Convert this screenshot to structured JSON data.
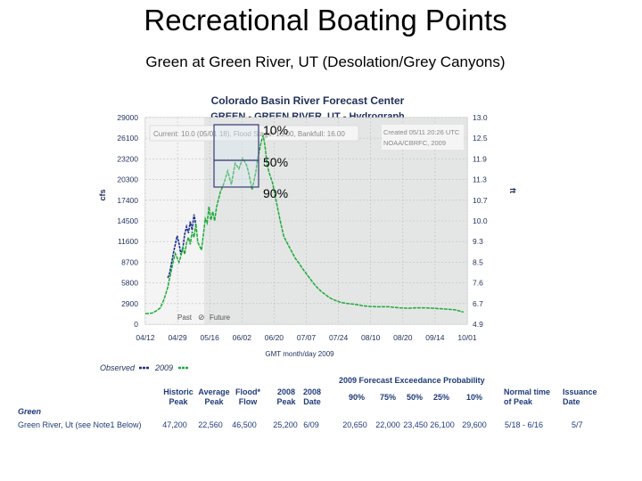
{
  "slide": {
    "title": "Recreational Boating Points",
    "subtitle": "Green at Green River, UT (Desolation/Grey Canyons)"
  },
  "chart_data": {
    "type": "line",
    "title": "Colorado Basin River Forecast Center",
    "subtitle": "GREEN - GREEN RIVER, UT - Hydrograph",
    "info_text": "Current: 10.0 (05/01 18), Flood Stage: 16.00, Bankfull: 16.00",
    "created_text_1": "Created 05/11 20:26 UTC",
    "created_text_2": "NOAA/CBRFC, 2009",
    "xlabel": "GMT month/day 2009",
    "ylabel_left": "cfs",
    "ylabel_right": "ft",
    "x_ticks": [
      "04/12",
      "04/29",
      "05/16",
      "06/02",
      "06/20",
      "07/07",
      "07/24",
      "08/10",
      "08/20",
      "09/14",
      "10/01"
    ],
    "y_ticks_left": [
      "29000",
      "26100",
      "23200",
      "20300",
      "17400",
      "14500",
      "11600",
      "8700",
      "5800",
      "2900",
      "0"
    ],
    "y_ticks_right": [
      "13.0",
      "12.5",
      "11.9",
      "11.3",
      "10.7",
      "10.0",
      "9.3",
      "8.5",
      "7.6",
      "6.7",
      "4.9"
    ],
    "ylim": [
      0,
      29000
    ],
    "xlim_days": [
      0,
      172
    ],
    "past_label": "Past",
    "future_label": "Future",
    "exceedance_labels": [
      "10%",
      "50%",
      "90%"
    ],
    "series": [
      {
        "name": "Observed",
        "color": "#1f2f8a",
        "points": [
          [
            12,
            6500
          ],
          [
            13,
            7200
          ],
          [
            14,
            8600
          ],
          [
            15,
            10000
          ],
          [
            16,
            11200
          ],
          [
            17,
            12400
          ],
          [
            18,
            11300
          ],
          [
            19,
            9800
          ],
          [
            20,
            10600
          ],
          [
            21,
            12600
          ],
          [
            22,
            13700
          ],
          [
            23,
            12800
          ],
          [
            24,
            14400
          ],
          [
            25,
            13200
          ],
          [
            26,
            15400
          ],
          [
            27,
            13900
          ]
        ]
      },
      {
        "name": "2009",
        "color": "#1faa3a",
        "points": [
          [
            0,
            1500
          ],
          [
            2,
            1500
          ],
          [
            4,
            1600
          ],
          [
            6,
            1900
          ],
          [
            8,
            2300
          ],
          [
            10,
            3500
          ],
          [
            12,
            5200
          ],
          [
            13,
            6500
          ],
          [
            14,
            7700
          ],
          [
            15,
            9000
          ],
          [
            16,
            9900
          ],
          [
            17,
            9300
          ],
          [
            18,
            8700
          ],
          [
            19,
            9600
          ],
          [
            20,
            10900
          ],
          [
            21,
            9800
          ],
          [
            22,
            11400
          ],
          [
            23,
            12200
          ],
          [
            24,
            11200
          ],
          [
            25,
            13000
          ],
          [
            26,
            12200
          ],
          [
            27,
            14100
          ],
          [
            28,
            11500
          ],
          [
            30,
            10400
          ],
          [
            31,
            12600
          ],
          [
            32,
            14800
          ],
          [
            33,
            14200
          ],
          [
            34,
            16500
          ],
          [
            35,
            14600
          ],
          [
            36,
            15800
          ],
          [
            37,
            14500
          ],
          [
            38,
            16400
          ],
          [
            40,
            18500
          ],
          [
            42,
            19800
          ],
          [
            44,
            21500
          ],
          [
            46,
            19600
          ],
          [
            48,
            22600
          ],
          [
            50,
            21800
          ],
          [
            52,
            23300
          ],
          [
            54,
            22400
          ],
          [
            55,
            21500
          ],
          [
            56,
            20300
          ],
          [
            57,
            18900
          ],
          [
            58,
            20000
          ],
          [
            59,
            21300
          ],
          [
            60,
            23200
          ],
          [
            61,
            24400
          ],
          [
            62,
            25700
          ],
          [
            63,
            26500
          ],
          [
            64,
            24900
          ],
          [
            65,
            22600
          ],
          [
            66,
            21400
          ],
          [
            68,
            19800
          ],
          [
            70,
            17200
          ],
          [
            72,
            14600
          ],
          [
            74,
            12300
          ],
          [
            76,
            11300
          ],
          [
            78,
            10300
          ],
          [
            80,
            9300
          ],
          [
            82,
            8600
          ],
          [
            84,
            7800
          ],
          [
            86,
            7100
          ],
          [
            88,
            6400
          ],
          [
            90,
            5700
          ],
          [
            92,
            5100
          ],
          [
            94,
            4600
          ],
          [
            96,
            4200
          ],
          [
            98,
            3800
          ],
          [
            100,
            3500
          ],
          [
            104,
            3100
          ],
          [
            108,
            2900
          ],
          [
            112,
            2800
          ],
          [
            116,
            2600
          ],
          [
            120,
            2500
          ],
          [
            124,
            2450
          ],
          [
            130,
            2450
          ],
          [
            136,
            2300
          ],
          [
            140,
            2250
          ],
          [
            146,
            2300
          ],
          [
            150,
            2300
          ],
          [
            156,
            2200
          ],
          [
            162,
            2100
          ],
          [
            166,
            2000
          ],
          [
            170,
            1700
          ]
        ]
      }
    ],
    "legend": [
      "Observed",
      "2009"
    ]
  },
  "table": {
    "row_group": "Green",
    "row_label": "Green River, Ut (see Note1 Below)",
    "headers": [
      [
        "Historic",
        "Peak"
      ],
      [
        "Average",
        "Peak"
      ],
      [
        "Flood*",
        "Flow"
      ],
      [
        "2008",
        "Peak"
      ],
      [
        "2008",
        "Date"
      ]
    ],
    "values": [
      "47,200",
      "22,560",
      "46,500",
      "25,200",
      "6/09"
    ],
    "exceedance_title": "2009 Forecast Exceedance Probability",
    "exceedance_headers": [
      "90%",
      "75%",
      "50%",
      "25%",
      "10%"
    ],
    "exceedance_values": [
      "20,650",
      "22,000",
      "23,450",
      "26,100",
      "29,600"
    ],
    "normal_time_header": [
      "Normal time",
      "of Peak"
    ],
    "normal_time_value": "5/18 - 6/16",
    "issuance_header": [
      "Issuance",
      "Date"
    ],
    "issuance_value": "5/7"
  }
}
